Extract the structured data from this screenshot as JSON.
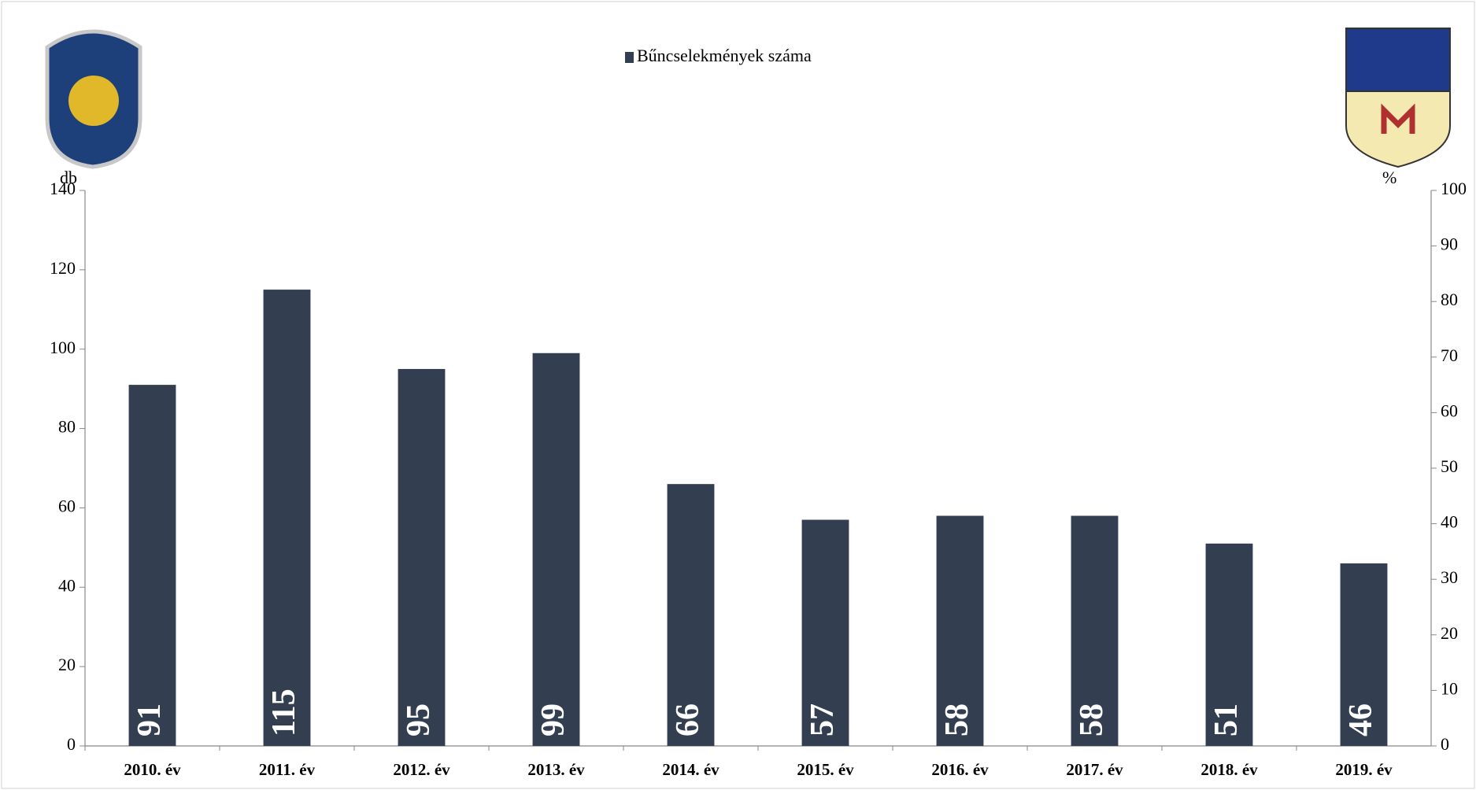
{
  "chart_data": {
    "type": "bar",
    "legend_label": "Bűncselekmények száma",
    "y_axis_label": "db",
    "y2_axis_label": "%",
    "categories": [
      "2010. év",
      "2011. év",
      "2012. év",
      "2013. év",
      "2014. év",
      "2015. év",
      "2016. év",
      "2017. év",
      "2018. év",
      "2019. év"
    ],
    "series": [
      {
        "name": "Bűncselekmények száma",
        "color": "#333f50",
        "values": [
          91,
          115,
          95,
          99,
          66,
          57,
          58,
          58,
          51,
          46
        ]
      }
    ],
    "ylim": [
      0,
      140
    ],
    "yticks": [
      0,
      20,
      40,
      60,
      80,
      100,
      120,
      140
    ],
    "y2lim": [
      0,
      100
    ],
    "y2ticks": [
      0,
      10,
      20,
      30,
      40,
      50,
      60,
      70,
      80,
      90,
      100
    ],
    "legend": "top"
  }
}
